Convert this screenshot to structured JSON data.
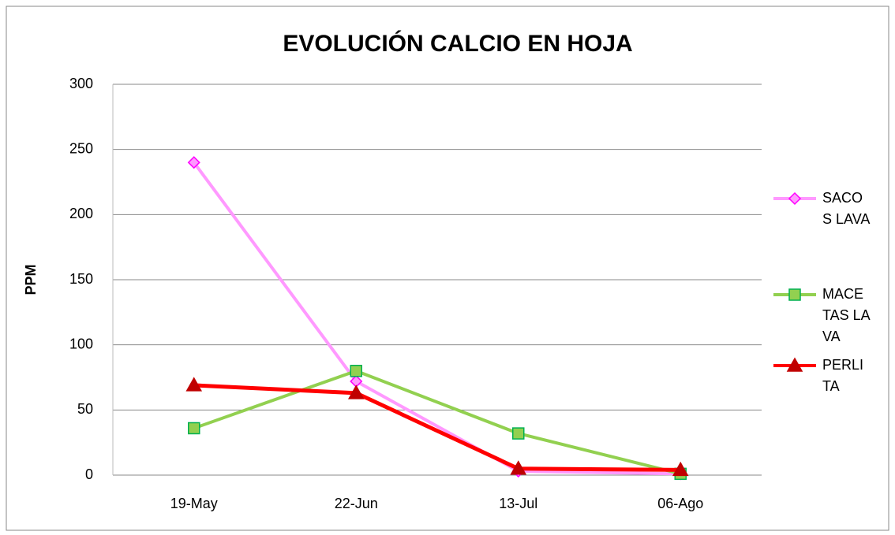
{
  "chart_data": {
    "type": "line",
    "title": "EVOLUCIÓN CALCIO EN HOJA",
    "y_label": "PPM",
    "categories": [
      "19-May",
      "22-Jun",
      "13-Jul",
      "06-Ago"
    ],
    "series": [
      {
        "name": "SACOS LAVA",
        "color": "#ff99ff",
        "marker": "diamond",
        "marker_color": "#ff00ff",
        "values": [
          240,
          72,
          3,
          1
        ]
      },
      {
        "name": "MACETAS LAVA",
        "color": "#92d050",
        "marker": "square",
        "marker_color": "#00b050",
        "values": [
          36,
          80,
          32,
          1
        ]
      },
      {
        "name": "PERLITA",
        "color": "#ff0000",
        "marker": "triangle",
        "marker_color": "#c00000",
        "values": [
          69,
          63,
          5,
          4
        ]
      }
    ],
    "ylim": [
      0,
      300
    ],
    "yticks": [
      0,
      50,
      100,
      150,
      200,
      250,
      300
    ],
    "grid": true,
    "legend": "right"
  }
}
